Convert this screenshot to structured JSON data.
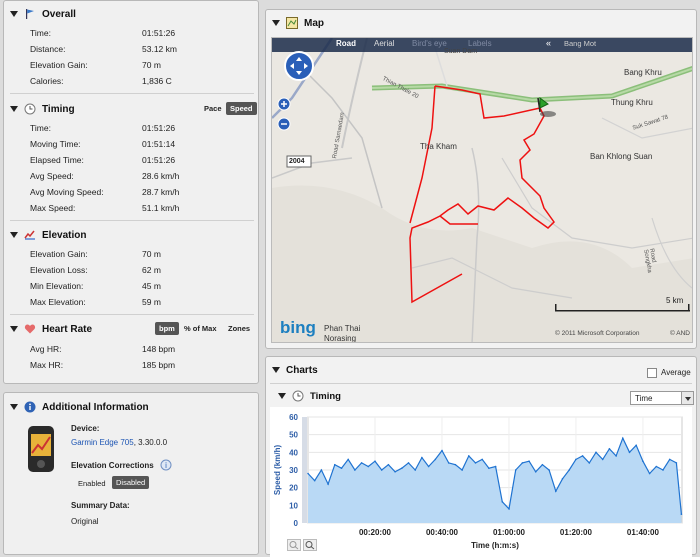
{
  "overall": {
    "title": "Overall",
    "rows": [
      {
        "label": "Time:",
        "value": "01:51:26"
      },
      {
        "label": "Distance:",
        "value": "53.12 km"
      },
      {
        "label": "Elevation Gain:",
        "value": "70 m"
      },
      {
        "label": "Calories:",
        "value": "1,836 C"
      }
    ]
  },
  "timing": {
    "title": "Timing",
    "toggle_pace": "Pace",
    "toggle_speed": "Speed",
    "rows": [
      {
        "label": "Time:",
        "value": "01:51:26"
      },
      {
        "label": "Moving Time:",
        "value": "01:51:14"
      },
      {
        "label": "Elapsed Time:",
        "value": "01:51:26"
      },
      {
        "label": "Avg Speed:",
        "value": "28.6 km/h"
      },
      {
        "label": "Avg Moving Speed:",
        "value": "28.7 km/h"
      },
      {
        "label": "Max Speed:",
        "value": "51.1 km/h"
      }
    ]
  },
  "elevation": {
    "title": "Elevation",
    "rows": [
      {
        "label": "Elevation Gain:",
        "value": "70 m"
      },
      {
        "label": "Elevation Loss:",
        "value": "62 m"
      },
      {
        "label": "Min Elevation:",
        "value": "45 m"
      },
      {
        "label": "Max Elevation:",
        "value": "59 m"
      }
    ]
  },
  "heart_rate": {
    "title": "Heart Rate",
    "toggle_bpm": "bpm",
    "toggle_pct": "% of Max",
    "toggle_zones": "Zones",
    "rows": [
      {
        "label": "Avg HR:",
        "value": "148 bpm"
      },
      {
        "label": "Max HR:",
        "value": "185 bpm"
      }
    ]
  },
  "additional": {
    "title": "Additional Information",
    "device_label": "Device:",
    "device_name": "Garmin Edge 705",
    "device_version": ", 3.30.0.0",
    "corrections_label": "Elevation Corrections",
    "enabled": "Enabled",
    "disabled": "Disabled",
    "summary_label": "Summary Data:",
    "summary_value": "Original"
  },
  "map": {
    "title": "Map",
    "tab_road": "Road",
    "tab_aerial": "Aerial",
    "tab_birdseye": "Bird's eye",
    "tab_labels": "Labels",
    "collapse": "«",
    "places": {
      "bang_mot": "Bang Mot",
      "bang_khru": "Bang Khru",
      "thung_khru": "Thung Khru",
      "tha_kham": "Tha Kham",
      "ban_khlong_suan": "Ban Khlong Suan",
      "phan_thai": "Phan Thai",
      "norasing": "Norasing",
      "suan_dam": "Suan Dam",
      "thian_thale": "Thian Thale 20",
      "suk_sawat": "Suk Sawat 78",
      "road_sa": "Road Samaedam",
      "road_sugh": "Road Songkha"
    },
    "route_number": "2004",
    "scale": "5 km",
    "copyright": "© 2011 Microsoft Corporation",
    "copyright2": "© AND",
    "bing": "bing"
  },
  "charts": {
    "title": "Charts",
    "average_label": "Average",
    "timing_title": "Timing",
    "x_select": "Time"
  },
  "chart_data": {
    "type": "area",
    "ylabel": "Speed (km/h)",
    "xlabel": "Time (h:m:s)",
    "ylim": [
      0,
      60
    ],
    "yticks": [
      0,
      10,
      20,
      30,
      40,
      50,
      60
    ],
    "xlim": [
      0,
      6700
    ],
    "xticks": [
      {
        "t": 1200,
        "label": "00:20:00"
      },
      {
        "t": 2400,
        "label": "00:40:00"
      },
      {
        "t": 3600,
        "label": "01:00:00"
      },
      {
        "t": 4800,
        "label": "01:20:00"
      },
      {
        "t": 6000,
        "label": "01:40:00"
      }
    ],
    "x": [
      0,
      120,
      240,
      360,
      480,
      600,
      720,
      840,
      960,
      1080,
      1200,
      1320,
      1440,
      1560,
      1680,
      1800,
      1920,
      2040,
      2160,
      2280,
      2400,
      2520,
      2640,
      2760,
      2880,
      3000,
      3120,
      3240,
      3360,
      3480,
      3600,
      3720,
      3840,
      3960,
      4080,
      4200,
      4320,
      4440,
      4560,
      4680,
      4800,
      4920,
      5040,
      5160,
      5280,
      5400,
      5520,
      5640,
      5760,
      5880,
      6000,
      6120,
      6240,
      6360,
      6480,
      6600,
      6690
    ],
    "values": [
      28,
      24,
      30,
      22,
      33,
      31,
      36,
      30,
      34,
      32,
      35,
      30,
      33,
      29,
      31,
      34,
      30,
      37,
      32,
      36,
      41,
      34,
      33,
      30,
      38,
      34,
      36,
      31,
      32,
      12,
      8,
      30,
      34,
      35,
      29,
      33,
      30,
      18,
      25,
      30,
      36,
      38,
      34,
      40,
      36,
      42,
      38,
      48,
      40,
      44,
      35,
      28,
      32,
      30,
      36,
      34,
      5
    ],
    "series_name": ""
  }
}
